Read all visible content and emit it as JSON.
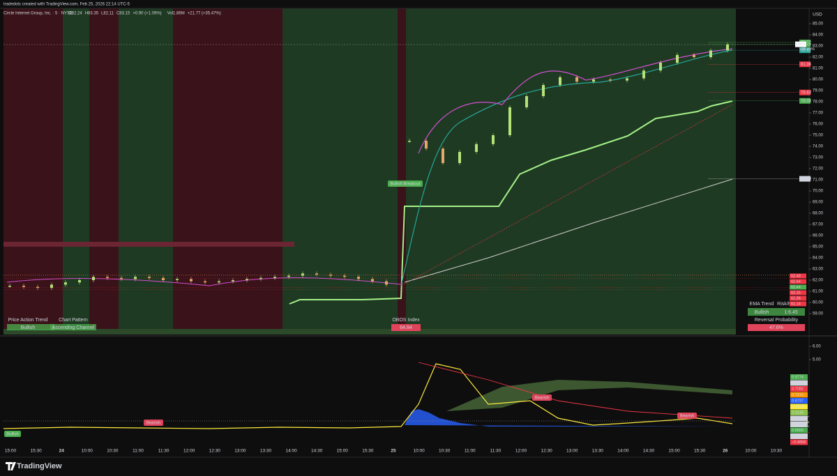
{
  "header": {
    "credit": "tradedots created with TradingView.com, Feb 25, 2026 22:14 UTC-5",
    "symbol": "Circle Internet Group, Inc. · 5 · NYSE",
    "ohlc": [
      "O82.24",
      "H83.35",
      "L82.11",
      "C83.15",
      "+0.90 (+1.09%)"
    ],
    "volume": [
      "Vol1.86M",
      "+21.77 (+35.47%)"
    ]
  },
  "chart_data": {
    "type": "candlestick",
    "currency": "USD",
    "symbol": "CRCL",
    "sessions": [
      {
        "closes": [
          61.5,
          61.4,
          61.3,
          61.6,
          61.8,
          62.0,
          62.3,
          62.2,
          62.1,
          62.3,
          62.2,
          62.0,
          62.1,
          61.9,
          61.8,
          61.9,
          62.0,
          62.1,
          62.2,
          62.3,
          62.4,
          62.6,
          62.5,
          62.4,
          62.3,
          62.1,
          61.9,
          61.6
        ]
      },
      {
        "closes": [
          74.5,
          73.8,
          72.5,
          73.5,
          74.2,
          75.0,
          77.5,
          78.5,
          79.5,
          80.2,
          79.8,
          80.0,
          79.9,
          80.1,
          80.8,
          81.5,
          82.2,
          82.0,
          82.6,
          83.15
        ]
      }
    ],
    "ylim": [
      57.125,
      86.375
    ],
    "yticks": [
      {
        "value": 59,
        "label": "59.00"
      },
      {
        "value": 60,
        "label": "60.00"
      },
      {
        "value": 61,
        "label": "61.00"
      },
      {
        "value": 62,
        "label": "62.00"
      },
      {
        "value": 63,
        "label": "63.00"
      },
      {
        "value": 64,
        "label": "64.00"
      },
      {
        "value": 65,
        "label": "65.00"
      },
      {
        "value": 66,
        "label": "66.00"
      },
      {
        "value": 67,
        "label": "67.00"
      },
      {
        "value": 68,
        "label": "68.00"
      },
      {
        "value": 69,
        "label": "69.00"
      },
      {
        "value": 70,
        "label": "70.00"
      },
      {
        "value": 71,
        "label": "71.00"
      },
      {
        "value": 72,
        "label": "72.00"
      },
      {
        "value": 73,
        "label": "73.00"
      },
      {
        "value": 74,
        "label": "74.00"
      },
      {
        "value": 75,
        "label": "75.00"
      },
      {
        "value": 76,
        "label": "76.00"
      },
      {
        "value": 77,
        "label": "77.00"
      },
      {
        "value": 78,
        "label": "78.00"
      },
      {
        "value": 79,
        "label": "79.00"
      },
      {
        "value": 80,
        "label": "80.00"
      },
      {
        "value": 81,
        "label": "81.00"
      },
      {
        "value": 82,
        "label": "82.00"
      },
      {
        "value": 83,
        "label": "83.00"
      },
      {
        "value": 84,
        "label": "84.00"
      },
      {
        "value": 85,
        "label": "85.00"
      }
    ],
    "price_badges": [
      {
        "value": 83.32,
        "color": "#4caf50"
      },
      {
        "value": 83.15,
        "color": "#4caf50"
      },
      {
        "value": 82.62,
        "color": "#26a69a"
      },
      {
        "value": 81.36,
        "color": "#f23645"
      },
      {
        "value": 78.83,
        "color": "#f23645"
      },
      {
        "value": 78.08,
        "color": "#4caf50"
      },
      {
        "value": 71.09,
        "color": "#d1d4dc"
      }
    ],
    "change_label": "+38.01%",
    "level_badges": [
      {
        "value": 62.48,
        "color": "#f23645"
      },
      {
        "value": 62.44,
        "color": "#f23645"
      },
      {
        "value": 62.44,
        "color": "#4caf50"
      },
      {
        "value": 62.15,
        "color": "#f23645"
      },
      {
        "value": 61.36,
        "color": "#f23645"
      },
      {
        "value": 61.14,
        "color": "#f23645"
      }
    ],
    "times": [
      "15:00",
      "15:30",
      "24",
      "10:00",
      "10:30",
      "11:00",
      "11:30",
      "12:00",
      "12:30",
      "13:00",
      "13:30",
      "14:00",
      "14:30",
      "15:00",
      "15:30",
      "25",
      "10:00",
      "10:30",
      "11:00",
      "11:30",
      "12:00",
      "12:30",
      "13:00",
      "13:30",
      "14:00",
      "14:30",
      "15:00",
      "15:30",
      "26",
      "10:00",
      "10:30"
    ],
    "labels": {
      "breakout": "Bullish Breakout",
      "bearish": [
        "Bearish",
        "Bearish",
        "Bearish"
      ],
      "bullish": "Bullish"
    },
    "oscillator": {
      "ylim": [
        -1.42,
        6.63
      ],
      "yticks": [
        {
          "value": 6,
          "label": "6.00"
        },
        {
          "value": 5,
          "label": "5.00"
        }
      ],
      "badges": [
        {
          "value": 0.9774,
          "label": "0.9774",
          "color": "#4caf50"
        },
        {
          "value": 0.7282,
          "label": "0.7282",
          "color": "#d1d4dc"
        },
        {
          "value": 0.7282,
          "label": "0.7282",
          "color": "#f23645"
        },
        {
          "value": 0.7215,
          "label": "0.7215",
          "color": "#ff9800"
        },
        {
          "value": 0.6737,
          "label": "0.6737",
          "color": "#2962ff"
        },
        {
          "value": 0.3174,
          "label": "0.3174",
          "color": "#ffeb3b"
        },
        {
          "value": 0.3146,
          "label": "0.3146",
          "color": "#8bc34a"
        },
        {
          "value": 0.2346,
          "label": "0.2346",
          "color": "#d1d4dc"
        },
        {
          "value": 0.2346,
          "label": "0.2346",
          "color": "#d1d4dc"
        },
        {
          "value": 0,
          "label": "0.0000",
          "color": "#4caf50"
        },
        {
          "value": -0.0478,
          "label": "−0.0478",
          "color": "#d1d4dc"
        },
        {
          "value": -0.4858,
          "label": "−0.4858",
          "color": "#f23645"
        }
      ]
    }
  },
  "tables": {
    "price_action": {
      "header": "Price Action Trend",
      "value": "Bullish"
    },
    "chart_pattern": {
      "header": "Chart Pattern",
      "value": "Ascending Channel"
    },
    "obos": {
      "header": "OBOS Index",
      "value": "64.84"
    },
    "ema_trend": {
      "header": "EMA Trend",
      "value": "Bullish"
    },
    "risk_reward": {
      "header": "Risk/Reward",
      "value": "1:6.45"
    },
    "reversal": {
      "header": "Reversal Probability",
      "value": "47.6%"
    }
  },
  "footer": "TradingView"
}
